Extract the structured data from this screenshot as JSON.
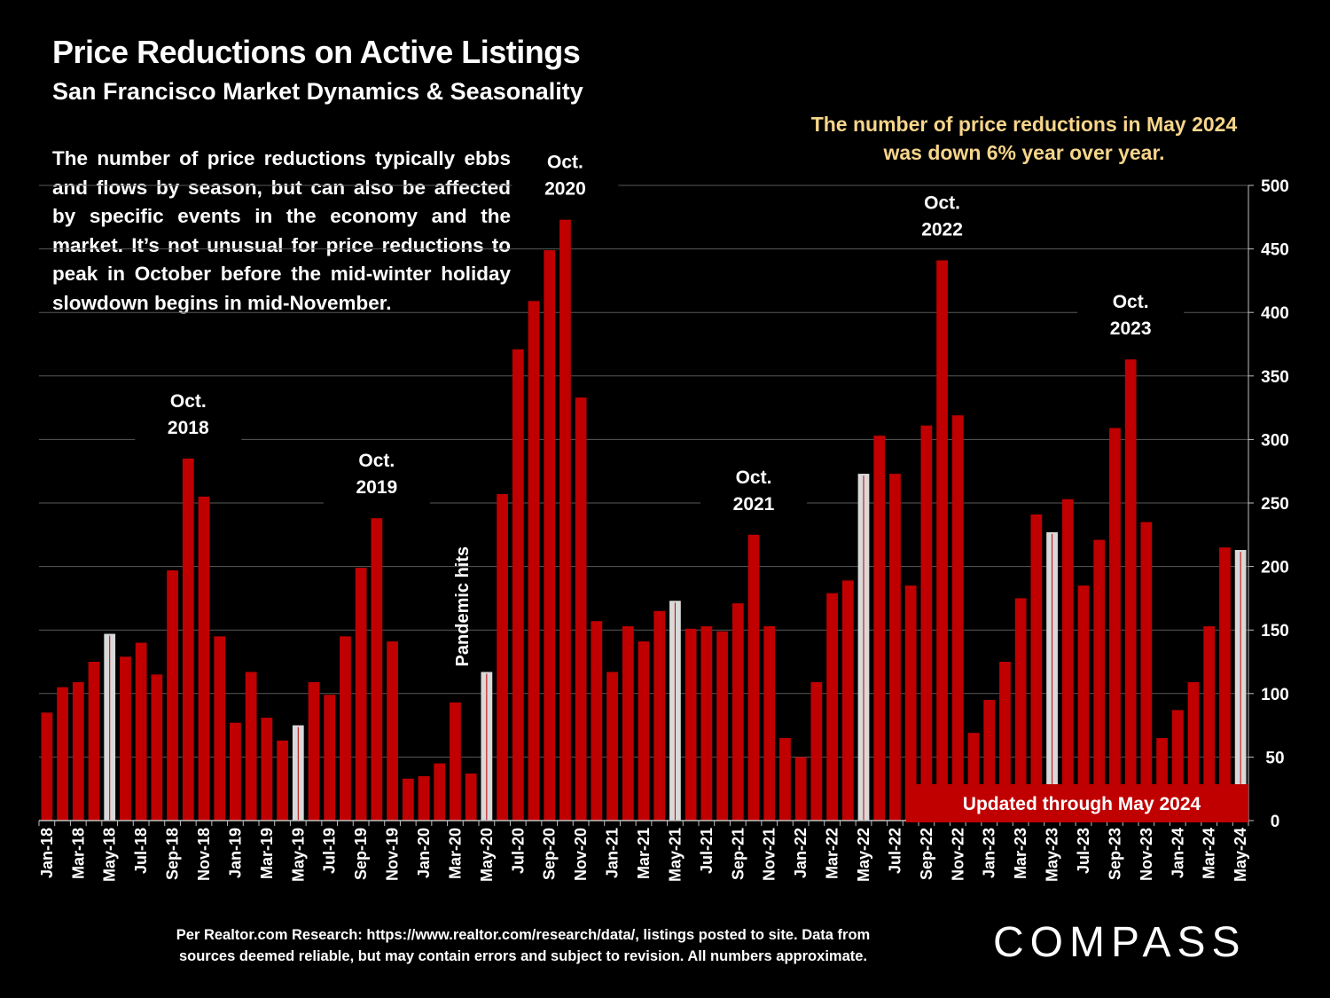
{
  "header": {
    "title": "Price Reductions on Active Listings",
    "subtitle": "San Francisco Market Dynamics & Seasonality"
  },
  "description": "The number of price reductions typically ebbs and flows by season, but can also be affected by specific events in the economy and the market. It’s not unusual for price reductions to peak in October before the mid-winter holiday slowdown begins in mid-November.",
  "callout": {
    "text": "The number of price reductions in May 2024 was down 6% year over year.",
    "color": "#f7d58b"
  },
  "badge": {
    "text": "Updated through May 2024"
  },
  "footer": {
    "line1": "Per Realtor.com Research:  https://www.realtor.com/research/data/, listings posted to site. Data from",
    "line2": "sources deemed reliable, but may contain errors and subject to revision. All numbers approximate."
  },
  "logo": {
    "text": "COMPASS"
  },
  "colors": {
    "bar": "#c00000",
    "highlight_bar": "#d9d9d9",
    "background": "#000000",
    "grid": "#595959"
  },
  "chart_data": {
    "type": "bar",
    "title": "Price Reductions on Active Listings",
    "xlabel": "",
    "ylabel": "",
    "ylim": [
      0,
      500
    ],
    "yticks": [
      0,
      50,
      100,
      150,
      200,
      250,
      300,
      350,
      400,
      450,
      500
    ],
    "y_axis_side": "right",
    "grid": true,
    "categories": [
      "Jan-18",
      "Feb-18",
      "Mar-18",
      "Apr-18",
      "May-18",
      "Jun-18",
      "Jul-18",
      "Aug-18",
      "Sep-18",
      "Oct-18",
      "Nov-18",
      "Dec-18",
      "Jan-19",
      "Feb-19",
      "Mar-19",
      "Apr-19",
      "May-19",
      "Jun-19",
      "Jul-19",
      "Aug-19",
      "Sep-19",
      "Oct-19",
      "Nov-19",
      "Dec-19",
      "Jan-20",
      "Feb-20",
      "Mar-20",
      "Apr-20",
      "May-20",
      "Jun-20",
      "Jul-20",
      "Aug-20",
      "Sep-20",
      "Oct-20",
      "Nov-20",
      "Dec-20",
      "Jan-21",
      "Feb-21",
      "Mar-21",
      "Apr-21",
      "May-21",
      "Jun-21",
      "Jul-21",
      "Aug-21",
      "Sep-21",
      "Oct-21",
      "Nov-21",
      "Dec-21",
      "Jan-22",
      "Feb-22",
      "Mar-22",
      "Apr-22",
      "May-22",
      "Jun-22",
      "Jul-22",
      "Aug-22",
      "Sep-22",
      "Oct-22",
      "Nov-22",
      "Dec-22",
      "Jan-23",
      "Feb-23",
      "Mar-23",
      "Apr-23",
      "May-23",
      "Jun-23",
      "Jul-23",
      "Aug-23",
      "Sep-23",
      "Oct-23",
      "Nov-23",
      "Dec-23",
      "Jan-24",
      "Feb-24",
      "Mar-24",
      "Apr-24",
      "May-24"
    ],
    "tick_labels": [
      "Jan-18",
      "Mar-18",
      "May-18",
      "Jul-18",
      "Sep-18",
      "Nov-18",
      "Jan-19",
      "Mar-19",
      "May-19",
      "Jul-19",
      "Sep-19",
      "Nov-19",
      "Jan-20",
      "Mar-20",
      "May-20",
      "Jul-20",
      "Sep-20",
      "Nov-20",
      "Jan-21",
      "Mar-21",
      "May-21",
      "Jul-21",
      "Sep-21",
      "Nov-21",
      "Jan-22",
      "Mar-22",
      "May-22",
      "Jul-22",
      "Sep-22",
      "Nov-22",
      "Jan-23",
      "Mar-23",
      "May-23",
      "Jul-23",
      "Sep-23",
      "Nov-23",
      "Jan-24",
      "Mar-24",
      "May-24"
    ],
    "values": [
      85,
      105,
      109,
      125,
      147,
      129,
      140,
      115,
      197,
      285,
      255,
      145,
      77,
      117,
      81,
      63,
      75,
      109,
      99,
      145,
      199,
      238,
      141,
      33,
      35,
      45,
      93,
      37,
      117,
      257,
      371,
      409,
      449,
      473,
      333,
      157,
      117,
      153,
      141,
      165,
      173,
      151,
      153,
      149,
      171,
      225,
      153,
      65,
      50,
      109,
      179,
      189,
      273,
      303,
      273,
      185,
      311,
      441,
      319,
      69,
      95,
      125,
      175,
      241,
      227,
      253,
      185,
      221,
      309,
      363,
      235,
      65,
      87,
      109,
      153,
      215,
      213
    ],
    "highlight_months": [
      "May-18",
      "May-19",
      "May-20",
      "May-21",
      "May-22",
      "May-23",
      "May-24"
    ],
    "annotations": [
      {
        "category": "Oct-18",
        "line1": "Oct.",
        "line2": "2018"
      },
      {
        "category": "Oct-19",
        "line1": "Oct.",
        "line2": "2019"
      },
      {
        "category": "Oct-20",
        "line1": "Oct.",
        "line2": "2020"
      },
      {
        "category": "Oct-21",
        "line1": "Oct.",
        "line2": "2021"
      },
      {
        "category": "Oct-22",
        "line1": "Oct.",
        "line2": "2022"
      },
      {
        "category": "Oct-23",
        "line1": "Oct.",
        "line2": "2023"
      }
    ],
    "pandemic_label": {
      "category": "May-20",
      "text": "Pandemic hits"
    }
  }
}
